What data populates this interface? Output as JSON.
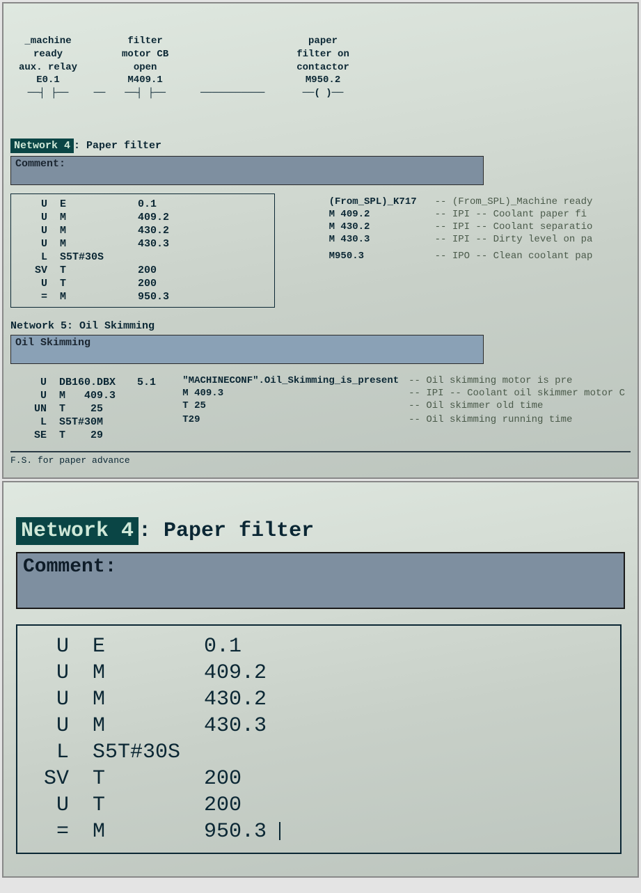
{
  "top": {
    "ladder": {
      "col1": {
        "l1": "_machine",
        "l2": "ready",
        "l3": "aux. relay",
        "addr": "E0.1"
      },
      "col2": {
        "l1": "filter",
        "l2": "motor CB",
        "l3": "open",
        "addr": "M409.1"
      },
      "col3": {
        "l1": "paper",
        "l2": "filter on",
        "l3": "contactor",
        "addr": "M950.2"
      }
    },
    "net4": {
      "label": "Network 4",
      "title": ": Paper filter",
      "comment_label": "Comment:",
      "stl": [
        {
          "op": "U",
          "a": "E",
          "b": "0.1"
        },
        {
          "op": "U",
          "a": "M",
          "b": "409.2"
        },
        {
          "op": "U",
          "a": "M",
          "b": "430.2"
        },
        {
          "op": "U",
          "a": "M",
          "b": "430.3"
        },
        {
          "op": "L",
          "a": "S5T#30S",
          "b": ""
        },
        {
          "op": "SV",
          "a": "T",
          "b": "200"
        },
        {
          "op": "U",
          "a": "T",
          "b": "200"
        },
        {
          "op": "=",
          "a": "M",
          "b": "950.3"
        }
      ],
      "symbols": [
        {
          "addr": "(From_SPL)_K717",
          "desc": "-- (From_SPL)_Machine ready"
        },
        {
          "addr": "M     409.2",
          "desc": "-- IPI --  Coolant paper fi"
        },
        {
          "addr": "M     430.2",
          "desc": "-- IPI -- Coolant separatio"
        },
        {
          "addr": "M     430.3",
          "desc": "-- IPI -- Dirty level on pa"
        },
        {
          "addr": "",
          "desc": ""
        },
        {
          "addr": "",
          "desc": ""
        },
        {
          "addr": "",
          "desc": ""
        },
        {
          "addr": "M950.3",
          "desc": "-- IPO -- Clean coolant pap"
        }
      ]
    },
    "net5": {
      "label": "Network 5",
      "title": ": Oil Skimming",
      "comment_label": "Oil Skimming",
      "stl": [
        {
          "op": "U",
          "a": "DB160.DBX",
          "b": "5.1"
        },
        {
          "op": "U",
          "a": "M   409.3",
          "b": ""
        },
        {
          "op": "UN",
          "a": "T    25",
          "b": ""
        },
        {
          "op": "L",
          "a": "S5T#30M",
          "b": ""
        },
        {
          "op": "SE",
          "a": "T    29",
          "b": ""
        }
      ],
      "symbols": [
        {
          "addr": "\"MACHINECONF\".Oil_Skimming_is_present",
          "desc": "-- Oil skimming motor is pre"
        },
        {
          "addr": "M     409.3",
          "desc": "-- IPI --  Coolant oil skimmer  motor C"
        },
        {
          "addr": "T 25",
          "desc": "-- Oil skimmer old time"
        },
        {
          "addr": "",
          "desc": ""
        },
        {
          "addr": "T29",
          "desc": "-- Oil skimming running time"
        }
      ]
    },
    "footer_hint": "F.S. for paper advance"
  },
  "bottom": {
    "label": "Network 4",
    "title": ": Paper filter",
    "comment_label": "Comment:",
    "stl": [
      {
        "op": "U",
        "a": "E",
        "b": "0.1"
      },
      {
        "op": "U",
        "a": "M",
        "b": "409.2"
      },
      {
        "op": "U",
        "a": "M",
        "b": "430.2"
      },
      {
        "op": "U",
        "a": "M",
        "b": "430.3"
      },
      {
        "op": "L",
        "a": "S5T#30S",
        "b": ""
      },
      {
        "op": "SV",
        "a": "T",
        "b": "200"
      },
      {
        "op": "U",
        "a": "T",
        "b": "200"
      },
      {
        "op": "=",
        "a": "M",
        "b": "950.3"
      }
    ]
  },
  "colors": {
    "bg": "#d5ddd5",
    "ink": "#0b2734",
    "bar": "#7e8fa0",
    "netlabel_bg": "#0a4545",
    "netlabel_fg": "#cfe8d8"
  }
}
